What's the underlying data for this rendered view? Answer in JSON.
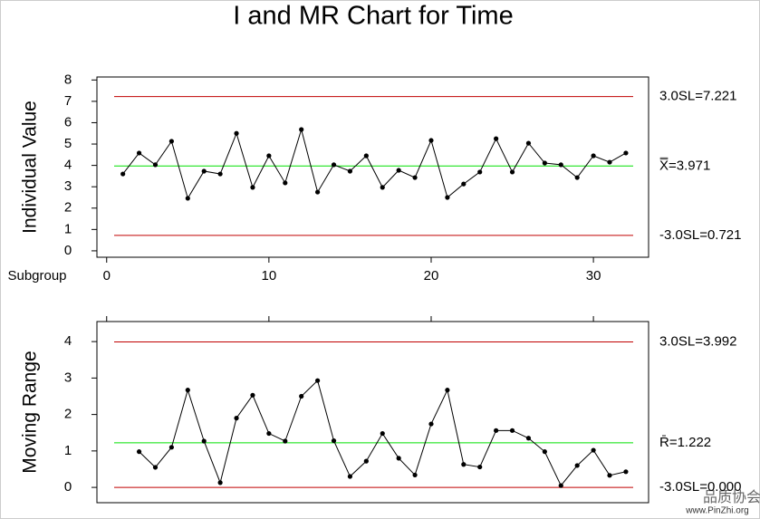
{
  "chart_data": [
    {
      "type": "line",
      "title": "I and MR Chart for Time",
      "y_label": "Individual Value",
      "x_label": "Subgroup",
      "x": [
        1,
        2,
        3,
        4,
        5,
        6,
        7,
        8,
        9,
        10,
        11,
        12,
        13,
        14,
        15,
        16,
        17,
        18,
        19,
        20,
        21,
        22,
        23,
        24,
        25,
        26,
        27,
        28,
        29,
        30,
        31,
        32
      ],
      "series": [
        {
          "color": "#000000",
          "values": [
            3.6,
            4.58,
            4.03,
            5.13,
            2.46,
            3.73,
            3.6,
            5.5,
            2.97,
            4.45,
            3.18,
            5.68,
            2.75,
            4.03,
            3.73,
            4.45,
            2.97,
            3.77,
            3.43,
            5.17,
            2.5,
            3.13,
            3.69,
            5.25,
            3.69,
            5.04,
            4.11,
            4.03,
            3.43,
            4.45,
            4.15,
            4.58
          ]
        }
      ],
      "limits": [
        {
          "value": 7.221,
          "label": "3.0SL=7.221",
          "color": "#c00000"
        },
        {
          "value": 3.971,
          "label": "X̿=3.971",
          "color": "#00e000"
        },
        {
          "value": 0.721,
          "label": "-3.0SL=0.721",
          "color": "#c00000"
        }
      ],
      "xlim": [
        -0.6,
        33.4
      ],
      "xticks": [
        0,
        10,
        20,
        30
      ],
      "xtick_side": "bottom",
      "xtick_labels": true,
      "ylim": [
        -0.3,
        8.14
      ],
      "yticks": [
        0,
        1,
        2,
        3,
        4,
        5,
        6,
        7,
        8
      ]
    },
    {
      "type": "line",
      "y_label": "Moving Range",
      "x": [
        1,
        2,
        3,
        4,
        5,
        6,
        7,
        8,
        9,
        10,
        11,
        12,
        13,
        14,
        15,
        16,
        17,
        18,
        19,
        20,
        21,
        22,
        23,
        24,
        25,
        26,
        27,
        28,
        29,
        30,
        31,
        32
      ],
      "series": [
        {
          "color": "#000000",
          "values": [
            null,
            0.98,
            0.55,
            1.1,
            2.67,
            1.27,
            0.13,
            1.9,
            2.53,
            1.48,
            1.27,
            2.5,
            2.93,
            1.28,
            0.3,
            0.72,
            1.48,
            0.8,
            0.34,
            1.74,
            2.67,
            0.63,
            0.56,
            1.56,
            1.56,
            1.35,
            0.98,
            0.05,
            0.6,
            1.02,
            0.33,
            0.43
          ]
        }
      ],
      "limits": [
        {
          "value": 3.992,
          "label": "3.0SL=3.992",
          "color": "#c00000"
        },
        {
          "value": 1.222,
          "label": "R̄=1.222",
          "color": "#00e000"
        },
        {
          "value": 0,
          "label": "-3.0SL=0.000",
          "color": "#c00000"
        }
      ],
      "xlim": [
        -0.6,
        33.4
      ],
      "xticks": [
        0,
        10,
        20,
        30
      ],
      "xtick_side": "top",
      "xtick_labels": false,
      "ylim": [
        -0.42,
        4.55
      ],
      "yticks": [
        0,
        1,
        2,
        3,
        4
      ]
    }
  ],
  "watermark": {
    "text": "品质协会",
    "url": "www.PinZhi.org"
  }
}
